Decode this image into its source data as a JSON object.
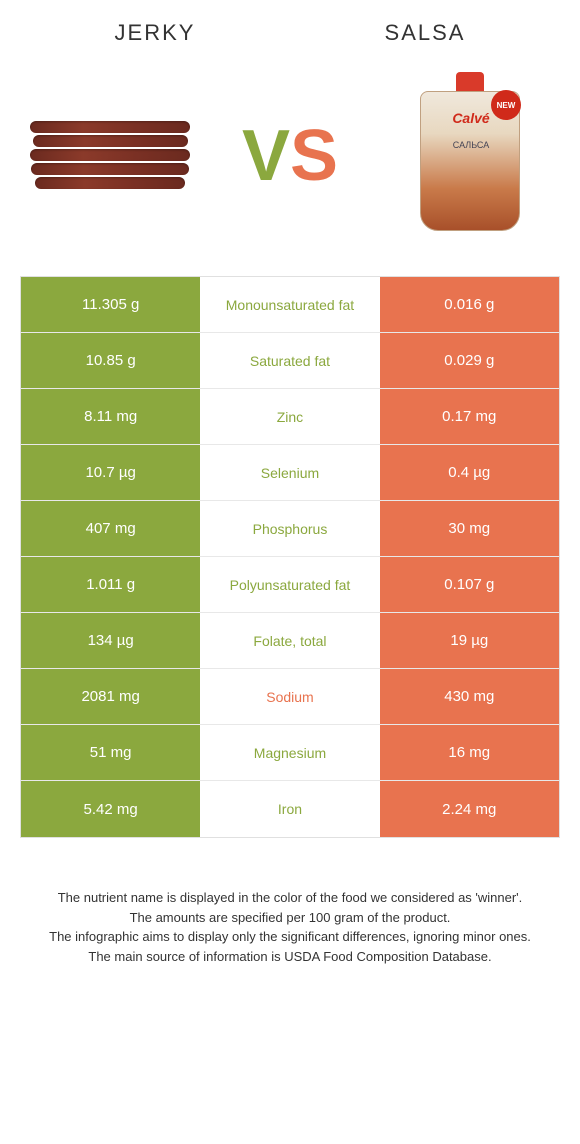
{
  "colors": {
    "jerky": "#8ba83e",
    "salsa": "#e8734f",
    "border": "#e0e0e0",
    "text": "#333333",
    "white": "#ffffff"
  },
  "header": {
    "left": "JERKY",
    "right": "SALSA"
  },
  "vs": {
    "v": "V",
    "s": "S"
  },
  "pouch": {
    "brand": "Calvé",
    "sub": "САЛЬСА",
    "badge": "NEW"
  },
  "rows": [
    {
      "left": "11.305 g",
      "label": "Monounsaturated fat",
      "right": "0.016 g",
      "winner": "jerky"
    },
    {
      "left": "10.85 g",
      "label": "Saturated fat",
      "right": "0.029 g",
      "winner": "jerky"
    },
    {
      "left": "8.11 mg",
      "label": "Zinc",
      "right": "0.17 mg",
      "winner": "jerky"
    },
    {
      "left": "10.7 µg",
      "label": "Selenium",
      "right": "0.4 µg",
      "winner": "jerky"
    },
    {
      "left": "407 mg",
      "label": "Phosphorus",
      "right": "30 mg",
      "winner": "jerky"
    },
    {
      "left": "1.011 g",
      "label": "Polyunsaturated fat",
      "right": "0.107 g",
      "winner": "jerky"
    },
    {
      "left": "134 µg",
      "label": "Folate, total",
      "right": "19 µg",
      "winner": "jerky"
    },
    {
      "left": "2081 mg",
      "label": "Sodium",
      "right": "430 mg",
      "winner": "salsa"
    },
    {
      "left": "51 mg",
      "label": "Magnesium",
      "right": "16 mg",
      "winner": "jerky"
    },
    {
      "left": "5.42 mg",
      "label": "Iron",
      "right": "2.24 mg",
      "winner": "jerky"
    }
  ],
  "footer": {
    "l1": "The nutrient name is displayed in the color of the food we considered as 'winner'.",
    "l2": "The amounts are specified per 100 gram of the product.",
    "l3": "The infographic aims to display only the significant differences, ignoring minor ones.",
    "l4": "The main source of information is USDA Food Composition Database."
  }
}
